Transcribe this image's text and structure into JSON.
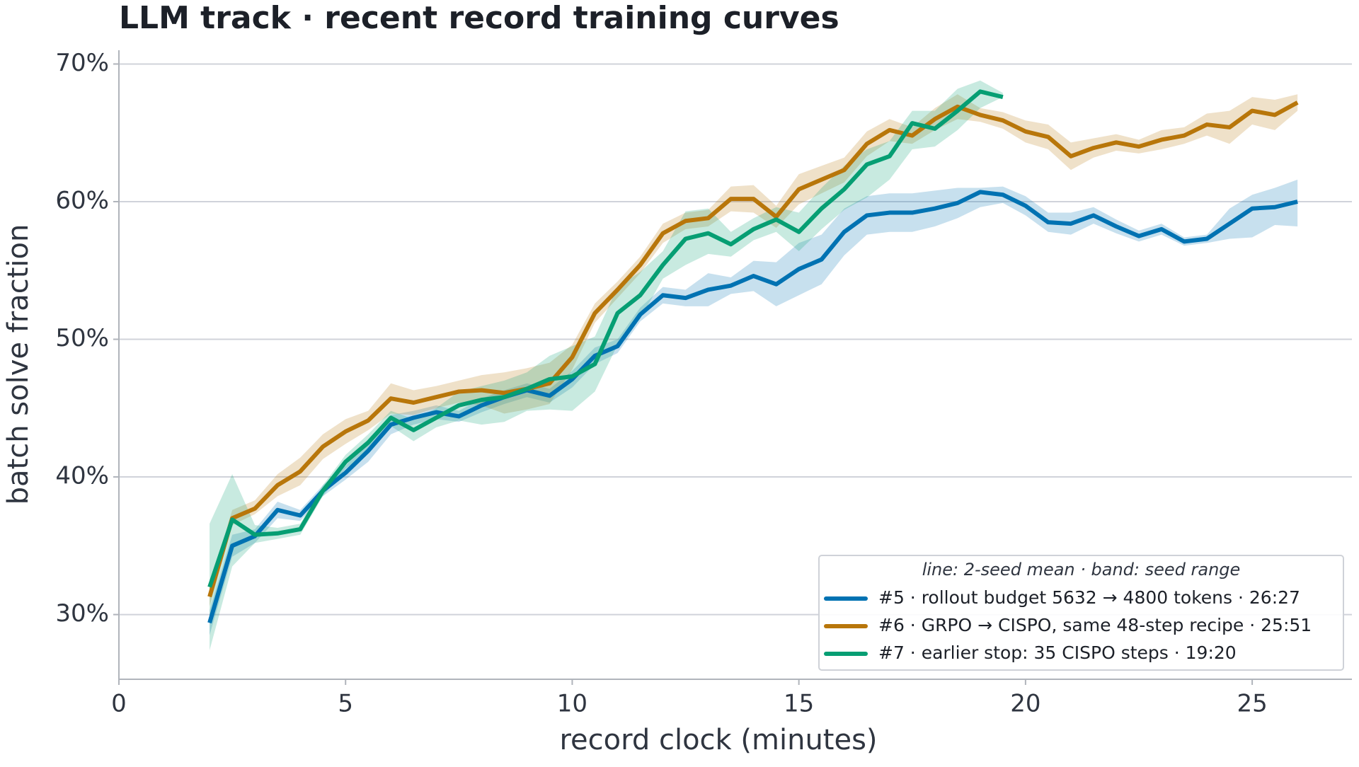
{
  "chart_data": {
    "type": "line",
    "title": "LLM track · recent record training curves",
    "x_label": "record clock (minutes)",
    "y_label": "batch solve fraction",
    "xlim": [
      0,
      27.2
    ],
    "ylim": [
      25.3,
      71.0
    ],
    "xticks": [
      0,
      5,
      10,
      15,
      20,
      25
    ],
    "yticks": [
      {
        "value": 30,
        "label": "30%"
      },
      {
        "value": 40,
        "label": "40%"
      },
      {
        "value": 50,
        "label": "50%"
      },
      {
        "value": 60,
        "label": "60%"
      },
      {
        "value": 70,
        "label": "70%"
      }
    ],
    "grid": true,
    "legend": {
      "title": "line: 2-seed mean  ·  band: seed range",
      "position": "lower right"
    },
    "series": [
      {
        "name": "#5 · rollout budget 5632 → 4800 tokens · 26:27",
        "color": "#0072b2",
        "x": [
          2,
          2.5,
          3,
          3.5,
          4,
          4.5,
          5,
          5.5,
          6,
          6.5,
          7,
          7.5,
          8,
          8.5,
          9,
          9.5,
          10,
          10.5,
          11,
          11.5,
          12,
          12.5,
          13,
          13.5,
          14,
          14.5,
          15,
          15.5,
          16,
          16.5,
          17,
          17.5,
          18,
          18.5,
          19,
          19.5,
          20,
          20.5,
          21,
          21.5,
          22,
          22.5,
          23,
          23.5,
          24,
          24.5,
          25,
          25.5,
          26
        ],
        "values": [
          29.4,
          35.0,
          35.7,
          37.6,
          37.2,
          39.0,
          40.3,
          41.9,
          43.8,
          44.3,
          44.7,
          44.4,
          45.2,
          45.8,
          46.3,
          45.9,
          47.1,
          48.8,
          49.5,
          51.8,
          53.2,
          53.0,
          53.6,
          53.9,
          54.6,
          54.0,
          55.1,
          55.8,
          57.8,
          59.0,
          59.2,
          59.2,
          59.5,
          59.9,
          60.7,
          60.5,
          59.7,
          58.5,
          58.4,
          59.0,
          58.2,
          57.5,
          58.0,
          57.1,
          57.3,
          58.4,
          59.5,
          59.6,
          60.0
        ],
        "low": [
          28.5,
          34.2,
          35.2,
          37.0,
          36.8,
          38.6,
          39.8,
          41.1,
          43.1,
          43.8,
          44.2,
          44.0,
          44.7,
          45.3,
          45.8,
          45.4,
          46.5,
          48.2,
          49.0,
          51.3,
          52.6,
          52.4,
          52.4,
          53.3,
          53.5,
          52.4,
          53.2,
          54.0,
          56.1,
          57.6,
          57.8,
          57.8,
          58.2,
          58.8,
          59.6,
          59.9,
          59.0,
          57.8,
          57.6,
          58.4,
          57.7,
          57.1,
          57.6,
          56.8,
          57.0,
          57.3,
          57.4,
          58.3,
          58.2
        ],
        "high": [
          30.3,
          35.8,
          36.2,
          38.2,
          37.6,
          39.4,
          40.8,
          42.7,
          44.5,
          44.8,
          45.2,
          44.8,
          45.7,
          46.3,
          46.8,
          46.4,
          47.7,
          49.4,
          50.0,
          52.3,
          53.8,
          53.6,
          54.8,
          54.5,
          55.7,
          55.6,
          57.0,
          57.6,
          59.5,
          60.4,
          60.6,
          60.6,
          60.8,
          61.0,
          61.0,
          61.1,
          60.4,
          59.2,
          59.2,
          59.6,
          58.7,
          57.9,
          58.4,
          57.4,
          57.6,
          59.5,
          60.5,
          61.0,
          61.6
        ]
      },
      {
        "name": "#6 · GRPO → CISPO, same 48-step recipe · 25:51",
        "color": "#b8760a",
        "x": [
          2,
          2.5,
          3,
          3.5,
          4,
          4.5,
          5,
          5.5,
          6,
          6.5,
          7,
          7.5,
          8,
          8.5,
          9,
          9.5,
          10,
          10.5,
          11,
          11.5,
          12,
          12.5,
          13,
          13.5,
          14,
          14.5,
          15,
          15.5,
          16,
          16.5,
          17,
          17.5,
          18,
          18.5,
          19,
          19.5,
          20,
          20.5,
          21,
          21.5,
          22,
          22.5,
          23,
          23.5,
          24,
          24.5,
          25,
          25.5,
          26
        ],
        "values": [
          31.3,
          37.0,
          37.7,
          39.4,
          40.4,
          42.2,
          43.3,
          44.1,
          45.7,
          45.4,
          45.8,
          46.2,
          46.3,
          46.1,
          46.4,
          46.8,
          48.7,
          51.9,
          53.6,
          55.4,
          57.7,
          58.6,
          58.8,
          60.2,
          60.2,
          58.9,
          60.9,
          61.6,
          62.3,
          64.2,
          65.2,
          64.8,
          66.0,
          66.9,
          66.3,
          65.9,
          65.1,
          64.7,
          63.3,
          63.9,
          64.3,
          64.0,
          64.5,
          64.8,
          65.6,
          65.4,
          66.6,
          66.3,
          67.2
        ],
        "low": [
          30.6,
          36.5,
          37.3,
          38.6,
          39.4,
          41.3,
          42.4,
          43.4,
          44.6,
          44.5,
          45.0,
          45.4,
          45.2,
          44.6,
          44.9,
          45.3,
          47.8,
          51.2,
          53.0,
          54.8,
          57.0,
          58.0,
          58.2,
          59.3,
          59.2,
          58.1,
          59.8,
          60.6,
          61.4,
          63.3,
          64.4,
          64.2,
          65.2,
          66.0,
          65.8,
          65.3,
          64.3,
          63.8,
          62.3,
          63.2,
          63.7,
          63.5,
          63.8,
          64.2,
          64.8,
          64.2,
          65.6,
          65.2,
          66.6
        ],
        "high": [
          32.0,
          37.6,
          38.3,
          40.2,
          41.4,
          43.1,
          44.2,
          44.8,
          46.8,
          46.3,
          46.6,
          47.0,
          47.4,
          47.6,
          47.9,
          48.3,
          49.6,
          52.6,
          54.2,
          56.0,
          58.4,
          59.2,
          59.4,
          61.1,
          61.2,
          59.7,
          62.0,
          62.6,
          63.2,
          65.1,
          66.0,
          65.4,
          66.8,
          67.8,
          66.8,
          66.5,
          65.9,
          65.6,
          64.3,
          64.6,
          64.9,
          64.5,
          65.2,
          65.4,
          66.4,
          66.6,
          67.6,
          67.4,
          67.8
        ]
      },
      {
        "name": "#7 · earlier stop: 35 CISPO steps · 19:20",
        "color": "#069e73",
        "x": [
          2,
          2.5,
          3,
          3.5,
          4,
          4.5,
          5,
          5.5,
          6,
          6.5,
          7,
          7.5,
          8,
          8.5,
          9,
          9.5,
          10,
          10.5,
          11,
          11.5,
          12,
          12.5,
          13,
          13.5,
          14,
          14.5,
          15,
          15.5,
          16,
          16.5,
          17,
          17.5,
          18,
          18.5,
          19,
          19.5
        ],
        "values": [
          32.0,
          36.9,
          35.8,
          35.9,
          36.2,
          39.0,
          41.1,
          42.5,
          44.3,
          43.4,
          44.3,
          45.2,
          45.6,
          45.8,
          46.4,
          47.1,
          47.3,
          48.2,
          51.9,
          53.2,
          55.4,
          57.3,
          57.7,
          56.9,
          58.0,
          58.7,
          57.8,
          59.5,
          60.9,
          62.7,
          63.3,
          65.7,
          65.3,
          66.6,
          68.0,
          67.6
        ],
        "low": [
          27.4,
          33.5,
          35.2,
          35.5,
          35.8,
          38.6,
          40.6,
          41.8,
          43.7,
          42.6,
          43.6,
          44.1,
          43.8,
          44.0,
          44.8,
          44.9,
          44.8,
          46.2,
          49.6,
          51.5,
          54.4,
          55.4,
          56.2,
          56.0,
          57.2,
          57.8,
          56.4,
          58.0,
          59.4,
          60.3,
          61.6,
          63.8,
          64.0,
          65.2,
          66.8,
          67.6
        ],
        "high": [
          36.6,
          40.2,
          36.5,
          36.3,
          36.6,
          39.4,
          41.6,
          43.1,
          44.8,
          44.2,
          45.0,
          46.2,
          46.6,
          47.0,
          47.6,
          48.8,
          49.5,
          50.2,
          53.8,
          54.9,
          56.4,
          59.3,
          59.5,
          57.8,
          58.8,
          59.6,
          59.2,
          61.0,
          62.6,
          63.8,
          64.4,
          66.6,
          66.6,
          68.2,
          68.8,
          67.9
        ]
      }
    ]
  }
}
